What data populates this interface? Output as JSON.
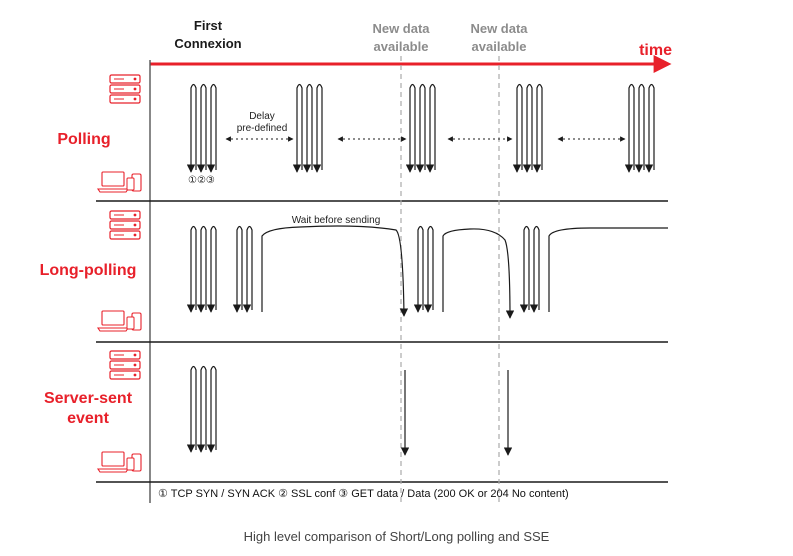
{
  "header": {
    "first_connection_line1": "First",
    "first_connection_line2": "Connexion",
    "new_data_1_line1": "New data",
    "new_data_1_line2": "available",
    "new_data_2_line1": "New data",
    "new_data_2_line2": "available",
    "time_label": "time"
  },
  "rows": {
    "polling": {
      "label": "Polling",
      "delay_line1": "Delay",
      "delay_line2": "pre-defined",
      "step_numbers": "①②③"
    },
    "long_polling": {
      "label": "Long-polling",
      "wait_label": "Wait before sending"
    },
    "sse": {
      "label_line1": "Server-sent",
      "label_line2": "event"
    }
  },
  "legend": "① TCP SYN / SYN ACK ② SSL conf ③ GET data / Data (200 OK or 204 No content)",
  "caption": "High level comparison of Short/Long polling and SSE",
  "colors": {
    "accent": "#e8202a",
    "line": "#1a1a1a",
    "dashed": "#aaaaaa",
    "muted": "#8c8c8c"
  },
  "icons": [
    "server-icon",
    "laptop-phone-icon"
  ]
}
